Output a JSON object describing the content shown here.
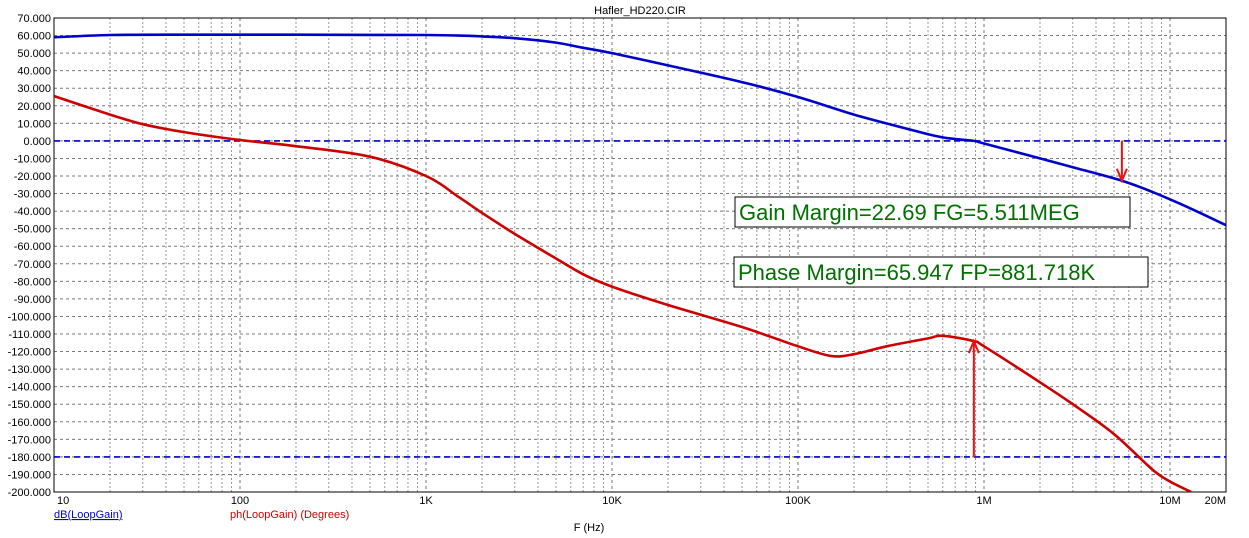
{
  "chart_data": {
    "type": "line",
    "title": "Hafler_HD220.CIR",
    "xlabel": "F (Hz)",
    "ylabel": "",
    "x_scale": "log",
    "xlim": [
      10,
      20000000
    ],
    "ylim": [
      -200,
      70
    ],
    "grid": true,
    "x_ticks": [
      {
        "value": 10,
        "label": "10"
      },
      {
        "value": 100,
        "label": "100"
      },
      {
        "value": 1000,
        "label": "1K"
      },
      {
        "value": 10000,
        "label": "10K"
      },
      {
        "value": 100000,
        "label": "100K"
      },
      {
        "value": 1000000,
        "label": "1M"
      },
      {
        "value": 10000000,
        "label": "10M"
      },
      {
        "value": 20000000,
        "label": "20M"
      }
    ],
    "y_ticks": [
      {
        "value": 70,
        "label": "70.000"
      },
      {
        "value": 60,
        "label": "60.000"
      },
      {
        "value": 50,
        "label": "50.000"
      },
      {
        "value": 40,
        "label": "40.000"
      },
      {
        "value": 30,
        "label": "30.000"
      },
      {
        "value": 20,
        "label": "20.000"
      },
      {
        "value": 10,
        "label": "10.000"
      },
      {
        "value": 0,
        "label": "0.000"
      },
      {
        "value": -10,
        "label": "-10.000"
      },
      {
        "value": -20,
        "label": "-20.000"
      },
      {
        "value": -30,
        "label": "-30.000"
      },
      {
        "value": -40,
        "label": "-40.000"
      },
      {
        "value": -50,
        "label": "-50.000"
      },
      {
        "value": -60,
        "label": "-60.000"
      },
      {
        "value": -70,
        "label": "-70.000"
      },
      {
        "value": -80,
        "label": "-80.000"
      },
      {
        "value": -90,
        "label": "-90.000"
      },
      {
        "value": -100,
        "label": "-100.000"
      },
      {
        "value": -110,
        "label": "-110.000"
      },
      {
        "value": -120,
        "label": "-120.000"
      },
      {
        "value": -130,
        "label": "-130.000"
      },
      {
        "value": -140,
        "label": "-140.000"
      },
      {
        "value": -150,
        "label": "-150.000"
      },
      {
        "value": -160,
        "label": "-160.000"
      },
      {
        "value": -170,
        "label": "-170.000"
      },
      {
        "value": -180,
        "label": "-180.000"
      },
      {
        "value": -190,
        "label": "-190.000"
      },
      {
        "value": -200,
        "label": "-200.000"
      }
    ],
    "series": [
      {
        "name": "dB(LoopGain)",
        "color": "#0000cc",
        "x": [
          10,
          20,
          50,
          100,
          200,
          500,
          1000,
          1500,
          2000,
          3000,
          5000,
          7000,
          10000,
          20000,
          50000,
          100000,
          200000,
          400000,
          600000,
          881718,
          1000000,
          2000000,
          3000000,
          5511000,
          8000000,
          12000000,
          20000000
        ],
        "y": [
          59,
          60.3,
          60.5,
          60.5,
          60.5,
          60.4,
          60.3,
          60,
          59.5,
          58.5,
          56,
          53,
          50,
          43,
          33.5,
          25,
          15,
          6.5,
          2,
          0,
          -1.5,
          -10,
          -15,
          -22.69,
          -29,
          -37,
          -48
        ]
      },
      {
        "name": "ph(LoopGain) (Degrees)",
        "color": "#cc0000",
        "x": [
          10,
          20,
          30,
          50,
          100,
          200,
          500,
          1000,
          1500,
          2000,
          3000,
          5000,
          7000,
          10000,
          20000,
          50000,
          100000,
          150000,
          200000,
          300000,
          500000,
          600000,
          881718,
          1000000,
          2000000,
          3000000,
          5000000,
          8000000,
          10000000,
          13000000
        ],
        "y": [
          25.5,
          15,
          9.5,
          5,
          0.5,
          -3,
          -9,
          -20,
          -32,
          -41,
          -53,
          -67,
          -76,
          -83,
          -93.5,
          -106,
          -117,
          -122.5,
          -121.5,
          -117,
          -112.5,
          -111,
          -114.053,
          -117,
          -137.5,
          -150,
          -167,
          -187,
          -194,
          -200
        ]
      }
    ],
    "reference_lines": [
      {
        "axis": "y",
        "value": 0,
        "style": "dashed",
        "color": "#0000cc"
      },
      {
        "axis": "y",
        "value": -180,
        "style": "dashed",
        "color": "#0000cc"
      }
    ],
    "annotations": [
      {
        "text": "Gain Margin=22.69 FG=5.511MEG",
        "color": "#007000"
      },
      {
        "text": "Phase Margin=65.947 FP=881.718K",
        "color": "#007000"
      }
    ],
    "markers": [
      {
        "x": 5511000,
        "y_from": 0,
        "y_to": -22.69,
        "color": "#ee1010"
      },
      {
        "x": 881718,
        "y_from": -180,
        "y_to": -114.053,
        "color": "#ee1010"
      }
    ],
    "legend_labels": [
      {
        "text": "dB(LoopGain)",
        "color": "#0000cc"
      },
      {
        "text": "ph(LoopGain) (Degrees)",
        "color": "#cc0000"
      }
    ]
  }
}
